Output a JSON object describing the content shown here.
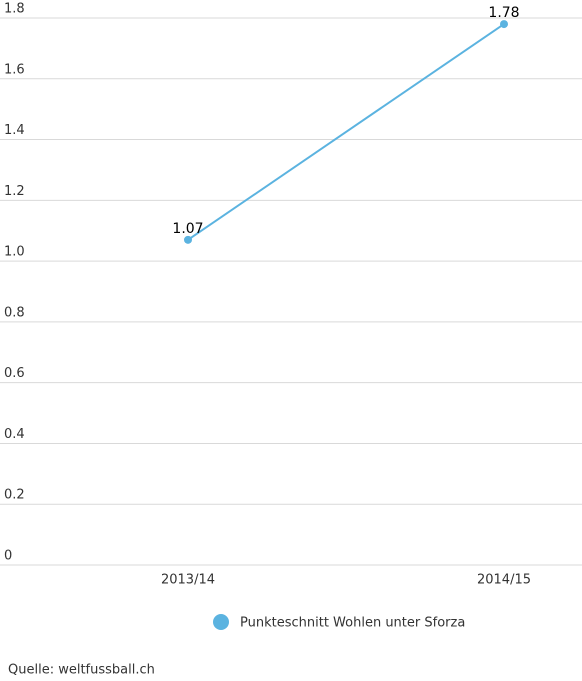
{
  "chart_data": {
    "type": "line",
    "categories": [
      "2013/14",
      "2014/15"
    ],
    "series": [
      {
        "name": "Punkteschnitt Wohlen unter Sforza",
        "color": "#5bb3e0",
        "values": [
          1.07,
          1.78
        ]
      }
    ],
    "ylim": [
      0,
      1.8
    ],
    "yticks": [
      0,
      0.2,
      0.4,
      0.6,
      0.8,
      {
        "value": 1,
        "label": "1.0"
      },
      1.2,
      1.4,
      1.6,
      1.8
    ],
    "grid": true,
    "legend": "bottom",
    "source": "Quelle: weltfussball.ch"
  }
}
